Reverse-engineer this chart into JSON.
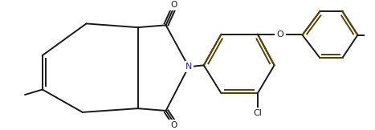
{
  "bg_color": "#ffffff",
  "bond_color": "#1a1a1a",
  "aromatic_bond_color": "#5c4400",
  "N_color": "#2222cc",
  "O_color": "#1a1a1a",
  "Cl_color": "#1a1a1a",
  "line_width": 1.4,
  "figsize": [
    4.67,
    1.62
  ],
  "dpi": 100,
  "xlim": [
    0,
    9.34
  ],
  "ylim": [
    0,
    3.24
  ]
}
